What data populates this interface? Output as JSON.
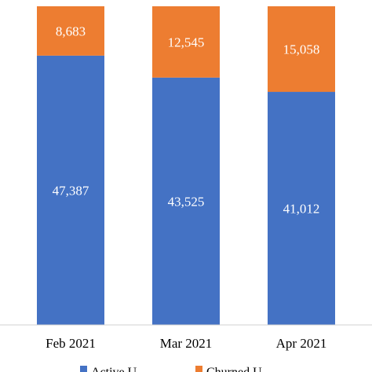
{
  "chart_data": {
    "type": "bar",
    "stacked": true,
    "categories": [
      "Feb 2021",
      "Mar 2021",
      "Apr 2021"
    ],
    "series": [
      {
        "name": "Active U...",
        "color": "#4472C4",
        "values": [
          47387,
          43525,
          41012
        ]
      },
      {
        "name": "Churned U...",
        "color": "#ED7D31",
        "values": [
          8683,
          12545,
          15058
        ]
      }
    ],
    "value_labels": [
      [
        "47,387",
        "43,525",
        "41,012"
      ],
      [
        "8,683",
        "12,545",
        "15,058"
      ]
    ],
    "ylim": [
      0,
      56070
    ],
    "grid": false,
    "legend": "bottom"
  }
}
